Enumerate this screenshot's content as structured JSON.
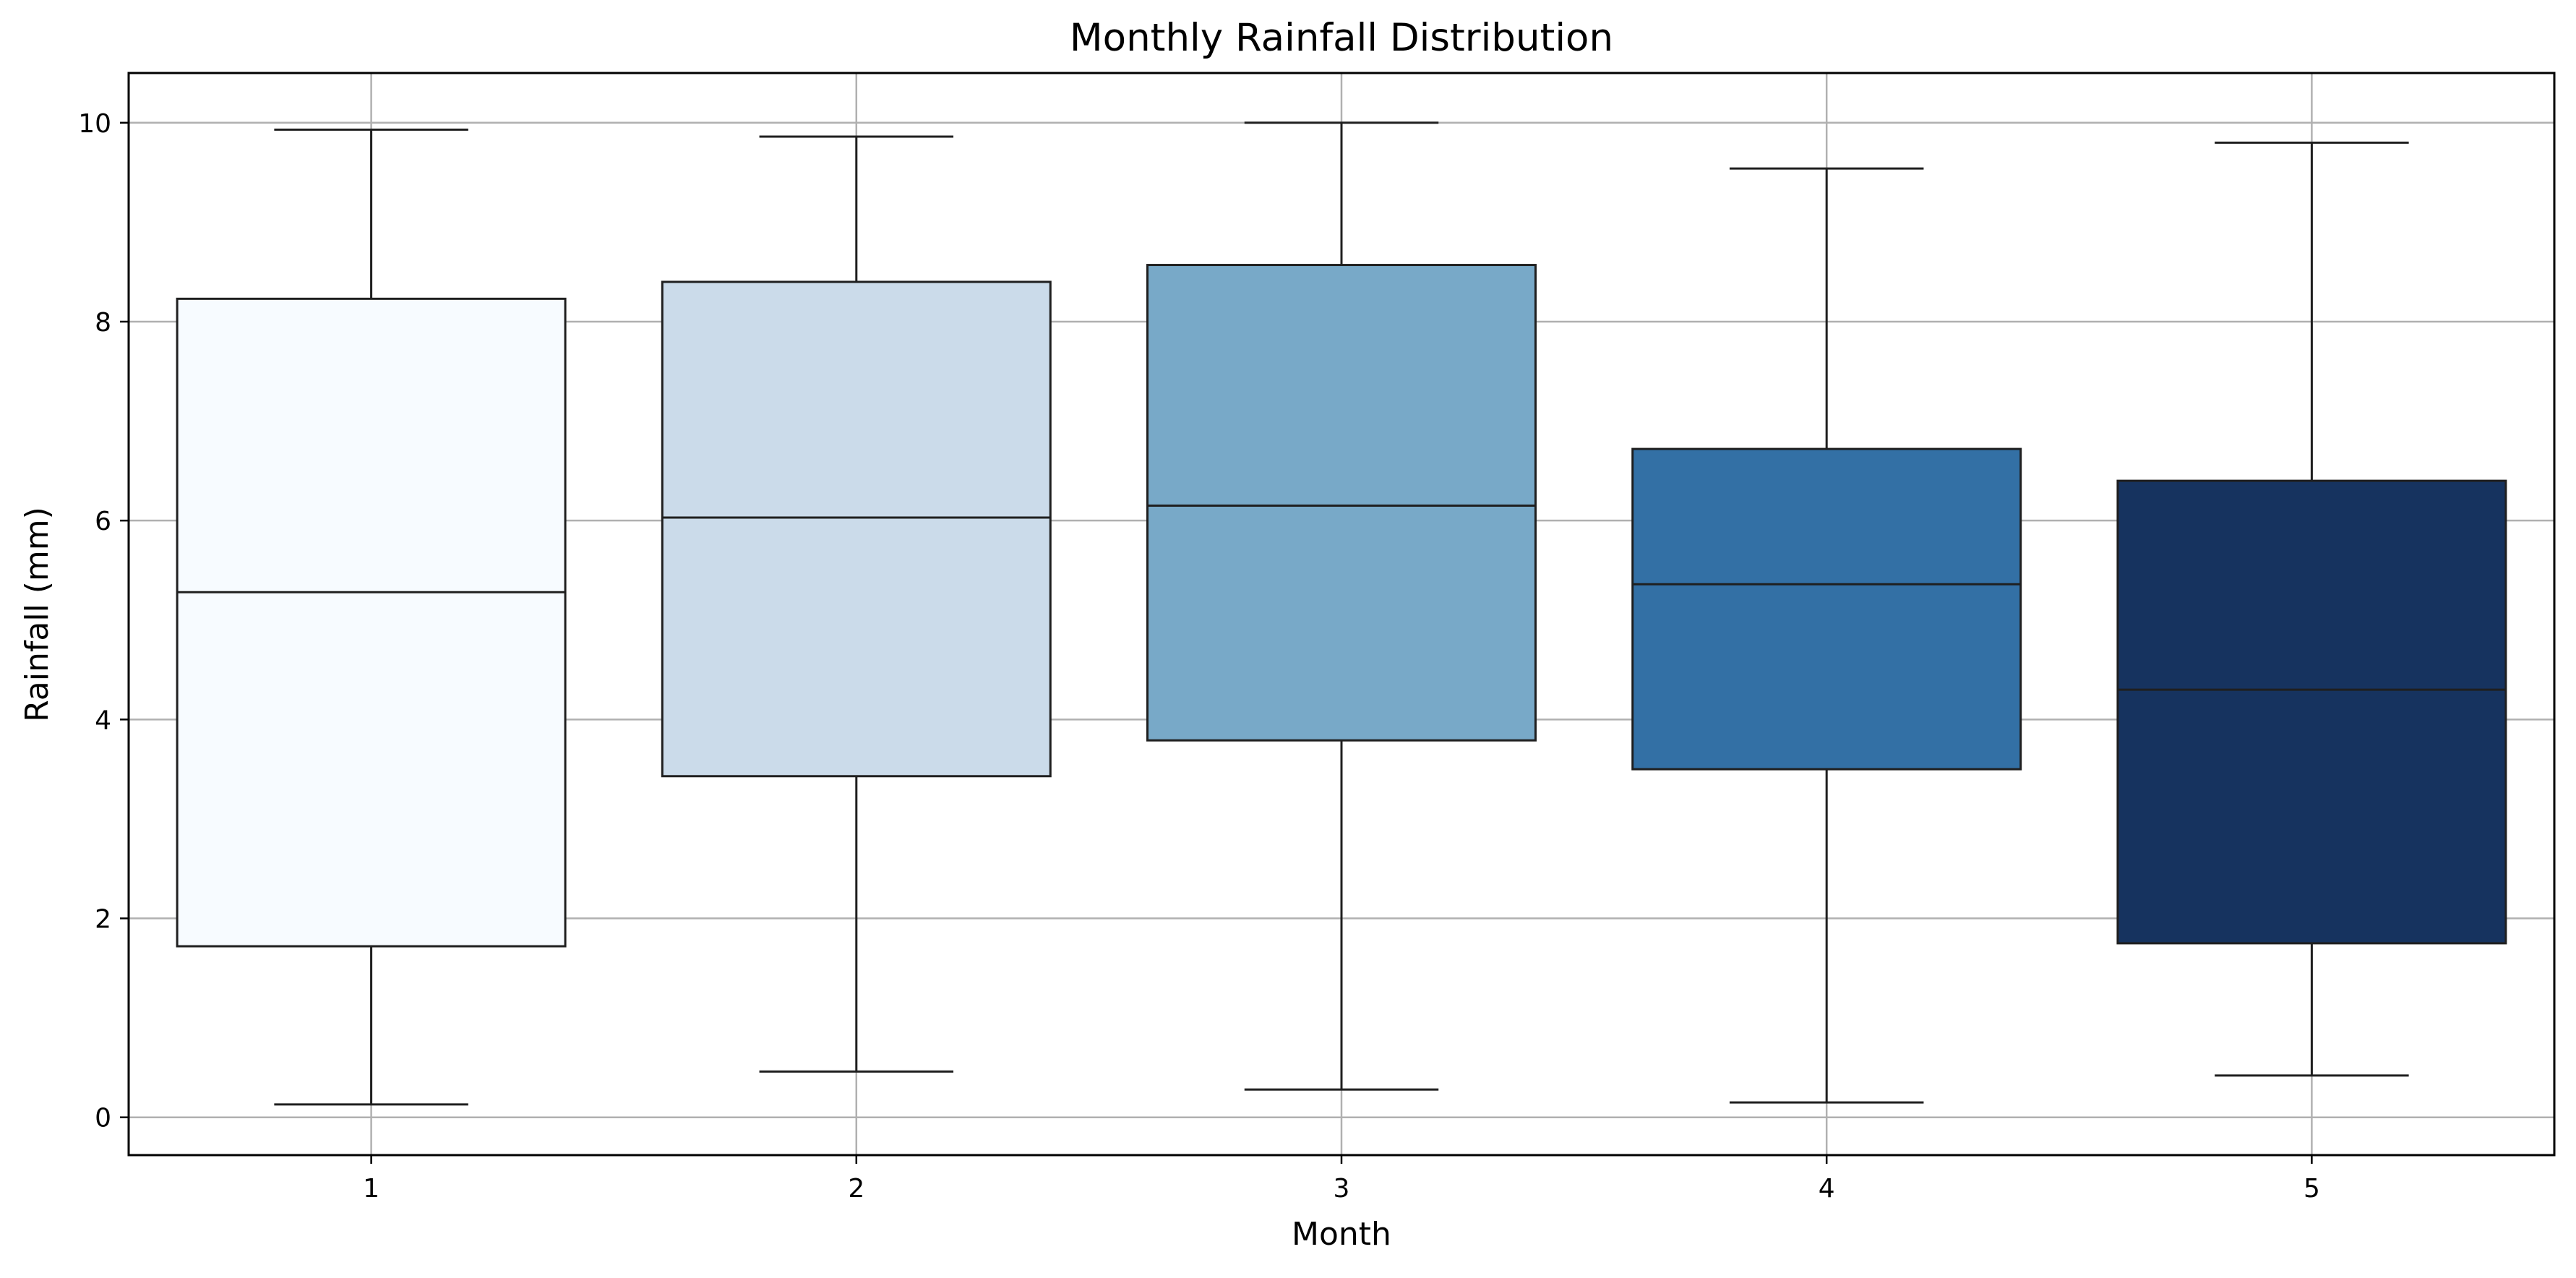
{
  "chart_data": {
    "type": "box",
    "title": "Monthly Rainfall Distribution",
    "xlabel": "Month",
    "ylabel": "Rainfall (mm)",
    "categories": [
      "1",
      "2",
      "3",
      "4",
      "5"
    ],
    "boxes": [
      {
        "category": "1",
        "whisker_low": 0.13,
        "q1": 1.72,
        "median": 5.28,
        "q3": 8.23,
        "whisker_high": 9.93,
        "color": "#f7fbff"
      },
      {
        "category": "2",
        "whisker_low": 0.46,
        "q1": 3.43,
        "median": 6.03,
        "q3": 8.4,
        "whisker_high": 9.86,
        "color": "#cbdbea"
      },
      {
        "category": "3",
        "whisker_low": 0.28,
        "q1": 3.79,
        "median": 6.15,
        "q3": 8.57,
        "whisker_high": 10.0,
        "color": "#78a9c8"
      },
      {
        "category": "4",
        "whisker_low": 0.15,
        "q1": 3.5,
        "median": 5.36,
        "q3": 6.72,
        "whisker_high": 9.54,
        "color": "#3370a5"
      },
      {
        "category": "5",
        "whisker_low": 0.42,
        "q1": 1.75,
        "median": 4.3,
        "q3": 6.4,
        "whisker_high": 9.8,
        "color": "#16335f"
      }
    ],
    "ylim": [
      -0.38,
      10.5
    ],
    "yticks": [
      "0",
      "2",
      "4",
      "6",
      "8",
      "10"
    ],
    "ytick_values": [
      0,
      2,
      4,
      6,
      8,
      10
    ],
    "grid": true,
    "legend": "none"
  }
}
